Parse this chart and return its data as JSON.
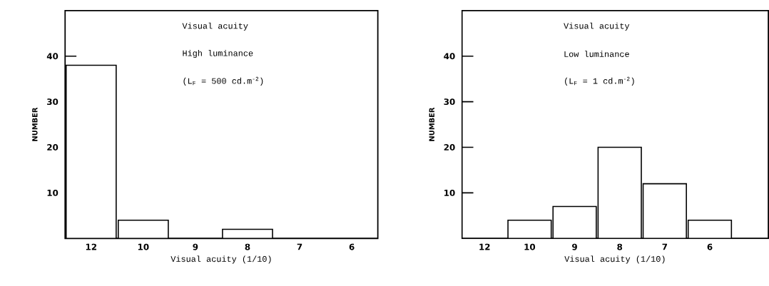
{
  "chart_data": [
    {
      "type": "bar",
      "categories": [
        "12",
        "10",
        "9",
        "8",
        "7",
        "6"
      ],
      "values": [
        38,
        4,
        0,
        2,
        0,
        0
      ],
      "color": "#ffffff",
      "xlabel": "Visual acuity (1/10)",
      "ylabel": "NUMBER",
      "ylim": [
        0,
        50
      ],
      "yticks": [
        10,
        20,
        30,
        40
      ],
      "grid": false,
      "annotations": [
        "Visual acuity",
        "High luminance",
        "(L$_{F}$ = 500 cd.m$^{-2}$)"
      ]
    },
    {
      "type": "bar",
      "categories": [
        "12",
        "10",
        "9",
        "8",
        "7",
        "6"
      ],
      "values": [
        0,
        4,
        7,
        20,
        12,
        4
      ],
      "color": "#ffffff",
      "xlabel": "Visual acuity (1/10)",
      "ylabel": "NUMBER",
      "ylim": [
        0,
        50
      ],
      "yticks": [
        10,
        20,
        30,
        40
      ],
      "grid": false,
      "annotations": [
        "Visual acuity",
        "Low luminance",
        "(L$_{F}$ = 1 cd.m$^{-2}$)"
      ]
    }
  ]
}
